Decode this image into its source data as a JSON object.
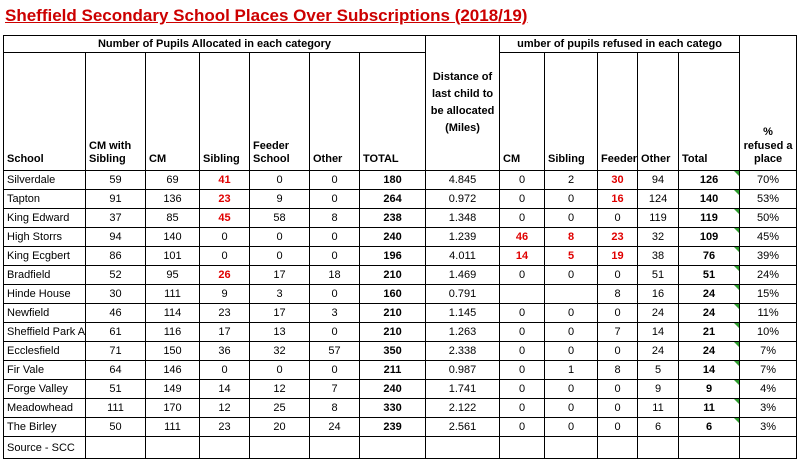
{
  "title": "Sheffield Secondary School Places Over Subscriptions (2018/19)",
  "source": "Source - SCC",
  "colors": {
    "title_red": "#cc0000",
    "cell_red": "#e00000",
    "indicator_green": "#2f9e2f"
  },
  "table": {
    "group_headers": {
      "allocated": "Number of Pupils Allocated in each category",
      "refused": "umber of pupils refused in each catego"
    },
    "columns": [
      "School",
      "CM with Sibling",
      "CM",
      "Sibling",
      "Feeder School",
      "Other",
      "TOTAL",
      "Distance of last child to be allocated (Miles)",
      "CM",
      "Sibling",
      "Feeder",
      "Other",
      "Total",
      "% refused a place"
    ],
    "bold_value_columns": [
      5,
      11
    ],
    "indicator_column": 11,
    "rows": [
      {
        "school": "Silverdale",
        "cells": [
          "59",
          "69",
          "41",
          "0",
          "0",
          "180",
          "4.845",
          "0",
          "2",
          "30",
          "94",
          "126",
          "70%"
        ],
        "red": [
          2,
          9
        ]
      },
      {
        "school": "Tapton",
        "cells": [
          "91",
          "136",
          "23",
          "9",
          "0",
          "264",
          "0.972",
          "0",
          "0",
          "16",
          "124",
          "140",
          "53%"
        ],
        "red": [
          2,
          9
        ]
      },
      {
        "school": "King Edward",
        "cells": [
          "37",
          "85",
          "45",
          "58",
          "8",
          "238",
          "1.348",
          "0",
          "0",
          "0",
          "119",
          "119",
          "50%"
        ],
        "red": [
          2
        ]
      },
      {
        "school": "High Storrs",
        "cells": [
          "94",
          "140",
          "0",
          "0",
          "0",
          "240",
          "1.239",
          "46",
          "8",
          "23",
          "32",
          "109",
          "45%"
        ],
        "red": [
          7,
          8,
          9
        ]
      },
      {
        "school": "King Ecgbert",
        "cells": [
          "86",
          "101",
          "0",
          "0",
          "0",
          "196",
          "4.011",
          "14",
          "5",
          "19",
          "38",
          "76",
          "39%"
        ],
        "red": [
          7,
          8,
          9
        ]
      },
      {
        "school": "Bradfield",
        "cells": [
          "52",
          "95",
          "26",
          "17",
          "18",
          "210",
          "1.469",
          "0",
          "0",
          "0",
          "51",
          "51",
          "24%"
        ],
        "red": [
          2
        ]
      },
      {
        "school": "Hinde House",
        "cells": [
          "30",
          "111",
          "9",
          "3",
          "0",
          "160",
          "0.791",
          "",
          "",
          "8",
          "16",
          "24",
          "15%"
        ],
        "red": []
      },
      {
        "school": "Newfield",
        "cells": [
          "46",
          "114",
          "23",
          "17",
          "3",
          "210",
          "1.145",
          "0",
          "0",
          "0",
          "24",
          "24",
          "11%"
        ],
        "red": []
      },
      {
        "school": "Sheffield Park Aca",
        "cells": [
          "61",
          "116",
          "17",
          "13",
          "0",
          "210",
          "1.263",
          "0",
          "0",
          "7",
          "14",
          "21",
          "10%"
        ],
        "red": []
      },
      {
        "school": "Ecclesfield",
        "cells": [
          "71",
          "150",
          "36",
          "32",
          "57",
          "350",
          "2.338",
          "0",
          "0",
          "0",
          "24",
          "24",
          "7%"
        ],
        "red": []
      },
      {
        "school": "Fir Vale",
        "cells": [
          "64",
          "146",
          "0",
          "0",
          "0",
          "211",
          "0.987",
          "0",
          "1",
          "8",
          "5",
          "14",
          "7%"
        ],
        "red": []
      },
      {
        "school": "Forge Valley",
        "cells": [
          "51",
          "149",
          "14",
          "12",
          "7",
          "240",
          "1.741",
          "0",
          "0",
          "0",
          "9",
          "9",
          "4%"
        ],
        "red": []
      },
      {
        "school": "Meadowhead",
        "cells": [
          "111",
          "170",
          "12",
          "25",
          "8",
          "330",
          "2.122",
          "0",
          "0",
          "0",
          "11",
          "11",
          "3%"
        ],
        "red": []
      },
      {
        "school": "The Birley",
        "cells": [
          "50",
          "111",
          "23",
          "20",
          "24",
          "239",
          "2.561",
          "0",
          "0",
          "0",
          "6",
          "6",
          "3%"
        ],
        "red": []
      }
    ]
  }
}
